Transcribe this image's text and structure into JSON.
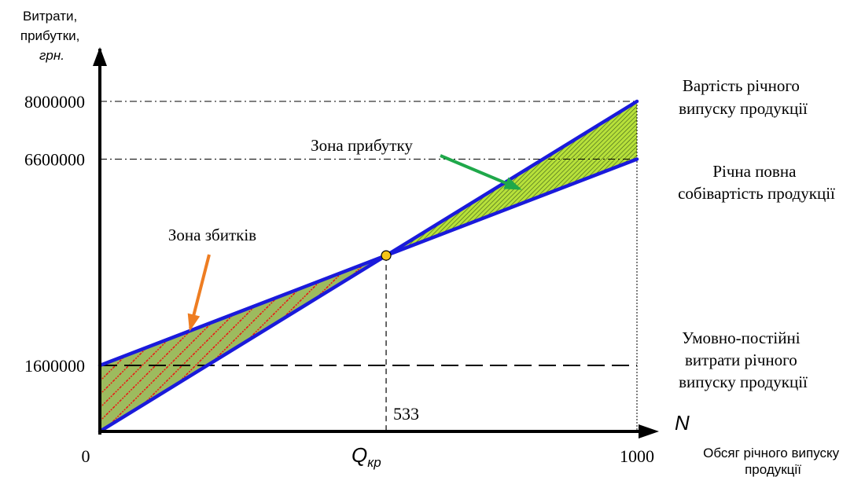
{
  "chart_data": {
    "type": "line",
    "title": "",
    "ylabel_lines": [
      "Витрати,",
      "прибутки,",
      "грн."
    ],
    "xlabel_symbol": "N",
    "xlabel_lines": [
      "Обсяг річного випуску",
      "продукції"
    ],
    "xlim": [
      0,
      1000
    ],
    "ylim": [
      0,
      8000000
    ],
    "x_ticks": [
      {
        "value": 0,
        "label": "0"
      },
      {
        "value": 1000,
        "label": "1000"
      }
    ],
    "y_ticks": [
      {
        "value": 1600000,
        "label": "1600000"
      },
      {
        "value": 6600000,
        "label": "6600000"
      },
      {
        "value": 8000000,
        "label": "8000000"
      }
    ],
    "series": [
      {
        "name": "Вартість річного випуску продукції",
        "x": [
          0,
          1000
        ],
        "y": [
          0,
          8000000
        ],
        "color": "#1a1adb"
      },
      {
        "name": "Річна повна собівартість продукції",
        "x": [
          0,
          1000
        ],
        "y": [
          1600000,
          6600000
        ],
        "color": "#1a1adb"
      },
      {
        "name": "Умовно-постійні витрати річного випуску продукції",
        "x": [
          0,
          1000
        ],
        "y": [
          1600000,
          1600000
        ],
        "color": "#000000"
      }
    ],
    "series_labels": [
      [
        "Вартість річного",
        "випуску продукції"
      ],
      [
        "Річна повна",
        "собівартість продукції"
      ],
      [
        "Умовно-постійні",
        "витрати річного",
        "випуску продукції"
      ]
    ],
    "break_even": {
      "x": 533,
      "x_label": "533",
      "symbol_main": "Q",
      "symbol_sub": "кр",
      "color": "#f5c518"
    },
    "zones": [
      {
        "label": "Зона збитків",
        "range": [
          0,
          533
        ],
        "fill": "#9dbb5e",
        "hatch": "#ee1111",
        "arrow_color": "#ee7d22"
      },
      {
        "label": "Зона прибутку",
        "range": [
          533,
          1000
        ],
        "fill": "#b7e13a",
        "hatch": "#3a5a1a",
        "arrow_color": "#1fa84a"
      }
    ],
    "grid": false
  }
}
